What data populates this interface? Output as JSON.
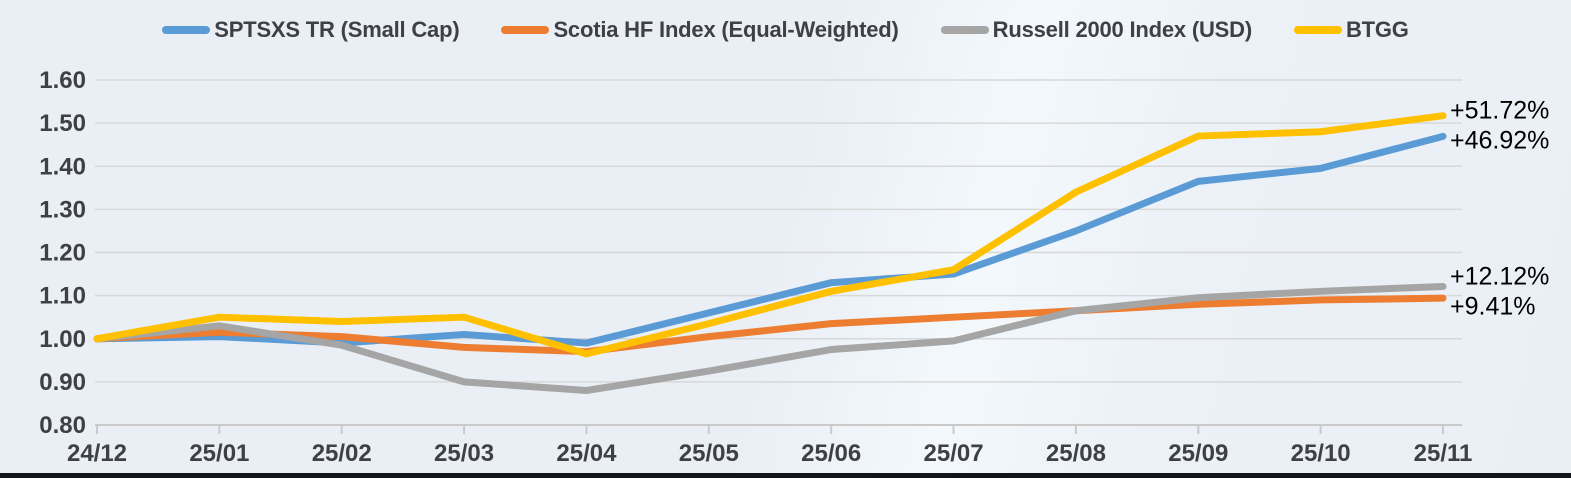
{
  "chart_data": {
    "type": "line",
    "title": "",
    "xlabel": "",
    "ylabel": "",
    "categories": [
      "24/12",
      "25/01",
      "25/02",
      "25/03",
      "25/04",
      "25/05",
      "25/06",
      "25/07",
      "25/08",
      "25/09",
      "25/10",
      "25/11"
    ],
    "series": [
      {
        "name": "SPTSXS TR (Small Cap)",
        "color": "#5B9BD5",
        "values": [
          1.0,
          1.005,
          0.99,
          1.01,
          0.99,
          1.06,
          1.13,
          1.15,
          1.25,
          1.365,
          1.395,
          1.4692
        ],
        "end_label": "+46.92%"
      },
      {
        "name": "Scotia HF Index (Equal-Weighted)",
        "color": "#ED7D31",
        "values": [
          1.0,
          1.015,
          1.005,
          0.98,
          0.97,
          1.005,
          1.035,
          1.05,
          1.065,
          1.08,
          1.09,
          1.0941
        ],
        "end_label": "+9.41%"
      },
      {
        "name": "Russell 2000 Index (USD)",
        "color": "#A5A5A5",
        "values": [
          1.0,
          1.03,
          0.985,
          0.9,
          0.88,
          0.925,
          0.975,
          0.995,
          1.065,
          1.095,
          1.11,
          1.1212
        ],
        "end_label": "+12.12%"
      },
      {
        "name": "BTGG",
        "color": "#FFC000",
        "values": [
          1.0,
          1.05,
          1.04,
          1.05,
          0.965,
          1.035,
          1.11,
          1.16,
          1.34,
          1.47,
          1.48,
          1.5172
        ],
        "end_label": "+51.72%"
      }
    ],
    "ylim": [
      0.8,
      1.6
    ],
    "ytick_step": 0.1,
    "ytick_labels": [
      "1.60",
      "1.50",
      "1.40",
      "1.30",
      "1.20",
      "1.10",
      "1.00",
      "0.90",
      "0.80"
    ],
    "grid": true,
    "legend_position": "top"
  },
  "colors": {
    "background": "#E9EFF5",
    "gridline": "#D8D8D8",
    "axis": "#CACACA",
    "tick_text": "#3F3F46",
    "end_label_text": "#000000",
    "bottom_bar": "#14141D"
  }
}
